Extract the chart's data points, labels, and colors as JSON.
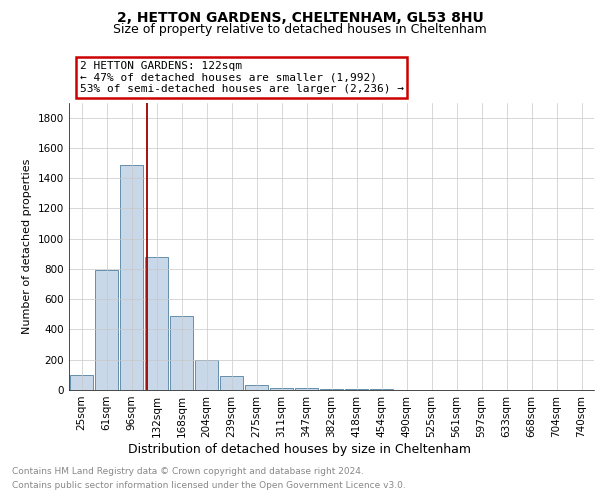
{
  "title": "2, HETTON GARDENS, CHELTENHAM, GL53 8HU",
  "subtitle": "Size of property relative to detached houses in Cheltenham",
  "xlabel": "Distribution of detached houses by size in Cheltenham",
  "ylabel": "Number of detached properties",
  "categories": [
    "25sqm",
    "61sqm",
    "96sqm",
    "132sqm",
    "168sqm",
    "204sqm",
    "239sqm",
    "275sqm",
    "311sqm",
    "347sqm",
    "382sqm",
    "418sqm",
    "454sqm",
    "490sqm",
    "525sqm",
    "561sqm",
    "597sqm",
    "633sqm",
    "668sqm",
    "704sqm",
    "740sqm"
  ],
  "values": [
    100,
    790,
    1490,
    880,
    490,
    200,
    95,
    30,
    15,
    10,
    8,
    5,
    4,
    3,
    2,
    2,
    1,
    1,
    1,
    1,
    1
  ],
  "bar_color": "#c8d8e8",
  "bar_edge_color": "#5080a0",
  "property_line_color": "#990000",
  "annotation_text": "2 HETTON GARDENS: 122sqm\n← 47% of detached houses are smaller (1,992)\n53% of semi-detached houses are larger (2,236) →",
  "annotation_box_color": "#ffffff",
  "annotation_box_edge_color": "#cc0000",
  "ylim": [
    0,
    1900
  ],
  "yticks": [
    0,
    200,
    400,
    600,
    800,
    1000,
    1200,
    1400,
    1600,
    1800
  ],
  "footer_line1": "Contains HM Land Registry data © Crown copyright and database right 2024.",
  "footer_line2": "Contains public sector information licensed under the Open Government Licence v3.0.",
  "bg_color": "#ffffff",
  "grid_color": "#c8c8c8",
  "title_fontsize": 10,
  "subtitle_fontsize": 9,
  "xlabel_fontsize": 9,
  "ylabel_fontsize": 8,
  "tick_fontsize": 7.5,
  "footer_fontsize": 6.5,
  "annotation_fontsize": 8
}
